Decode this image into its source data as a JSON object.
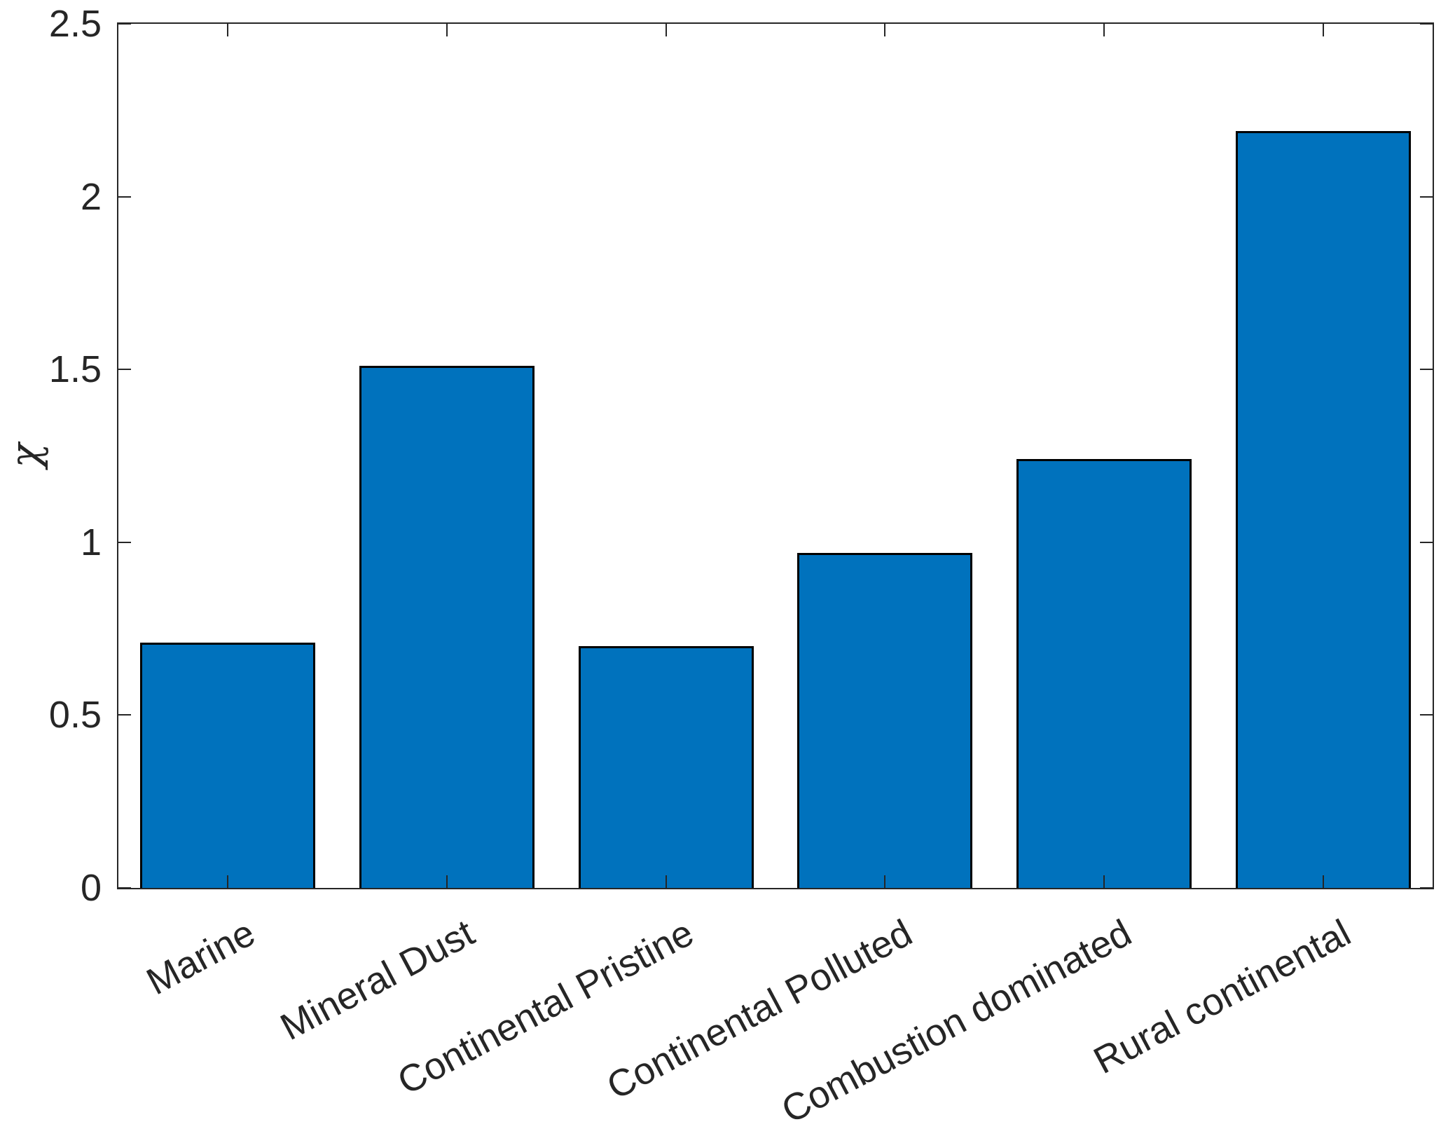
{
  "chart_data": {
    "type": "bar",
    "title": "",
    "xlabel": "",
    "ylabel": "χ",
    "categories": [
      "Marine",
      "Mineral Dust",
      "Continental Pristine",
      "Continental Polluted",
      "Combustion dominated",
      "Rural continental"
    ],
    "values": [
      0.71,
      1.51,
      0.7,
      0.97,
      1.24,
      2.19
    ],
    "ylim": [
      0,
      2.5
    ],
    "yticks": [
      0,
      0.5,
      1,
      1.5,
      2,
      2.5
    ],
    "ytick_labels": [
      "0",
      "0.5",
      "1",
      "1.5",
      "2",
      "2.5"
    ],
    "xtick_angle_deg": 28,
    "grid": false,
    "legend_position": "none",
    "bar_color": "#0072BD",
    "bar_edge_color": "#000000",
    "axis_color": "#262626",
    "text_color": "#262626",
    "background_color": "#FFFFFF"
  }
}
